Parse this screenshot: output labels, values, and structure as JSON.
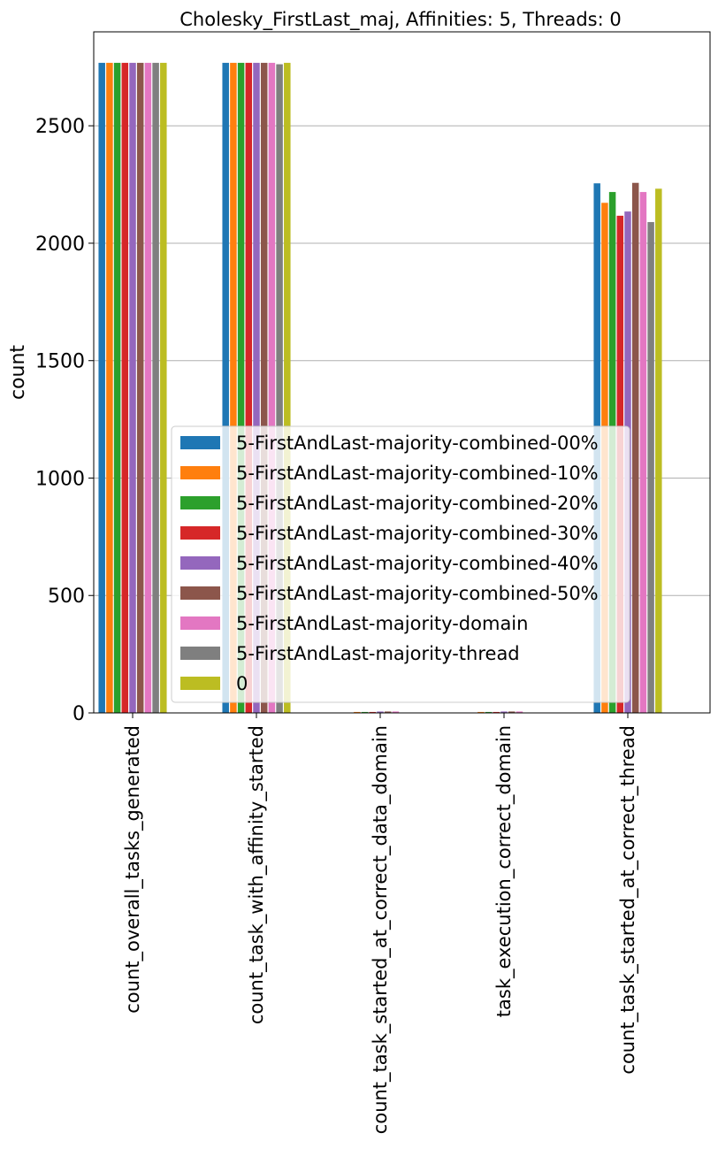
{
  "chart_data": {
    "type": "bar",
    "title": "Cholesky_FirstLast_maj, Affinities: 5, Threads: 0",
    "xlabel": "",
    "ylabel": "count",
    "ylim": [
      0,
      2900
    ],
    "yticks": [
      0,
      500,
      1000,
      1500,
      2000,
      2500
    ],
    "grid": "y",
    "legend_position": "lower center",
    "categories": [
      "count_overall_tasks_generated",
      "count_task_with_affinity_started",
      "count_task_started_at_correct_data_domain",
      "task_execution_correct_domain",
      "count_task_started_at_correct_thread"
    ],
    "series": [
      {
        "name": "5-FirstAndLast-majority-combined-00%",
        "color": "#1f77b4",
        "values": [
          2768,
          2768,
          0,
          0,
          2255
        ]
      },
      {
        "name": "5-FirstAndLast-majority-combined-10%",
        "color": "#ff7f0e",
        "values": [
          2768,
          2768,
          4,
          4,
          2172
        ]
      },
      {
        "name": "5-FirstAndLast-majority-combined-20%",
        "color": "#2ca02c",
        "values": [
          2768,
          2768,
          4,
          4,
          2218
        ]
      },
      {
        "name": "5-FirstAndLast-majority-combined-30%",
        "color": "#d62728",
        "values": [
          2768,
          2768,
          4,
          4,
          2117
        ]
      },
      {
        "name": "5-FirstAndLast-majority-combined-40%",
        "color": "#9467bd",
        "values": [
          2768,
          2768,
          6,
          6,
          2135
        ]
      },
      {
        "name": "5-FirstAndLast-majority-combined-50%",
        "color": "#8c564b",
        "values": [
          2768,
          2768,
          6,
          6,
          2257
        ]
      },
      {
        "name": "5-FirstAndLast-majority-domain",
        "color": "#e377c2",
        "values": [
          2768,
          2768,
          6,
          6,
          2218
        ]
      },
      {
        "name": "5-FirstAndLast-majority-thread",
        "color": "#7f7f7f",
        "values": [
          2768,
          2762,
          0,
          0,
          2090
        ]
      },
      {
        "name": "0",
        "color": "#bcbd22",
        "values": [
          2768,
          2768,
          0,
          0,
          2232
        ]
      }
    ]
  }
}
